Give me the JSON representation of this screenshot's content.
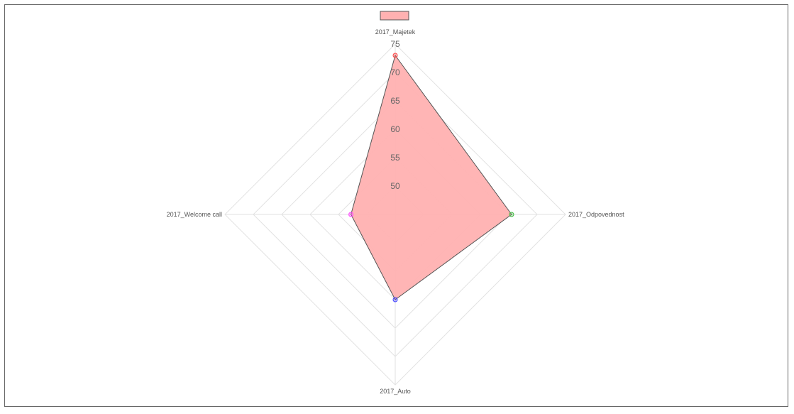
{
  "chart_data": {
    "type": "radar",
    "axes": [
      "2017_Majetek",
      "2017_Odpovednost",
      "2017_Auto",
      "2017_Welcome call"
    ],
    "series": [
      {
        "values": [
          73,
          65.5,
          60,
          52.8
        ],
        "fill_color": "#ffb1b1",
        "line_color": "#555555",
        "point_colors": [
          "#ff4444",
          "#44bb44",
          "#4444ff",
          "#ff44ff"
        ]
      }
    ],
    "r_min": 45,
    "r_max": 75,
    "ticks": [
      "50",
      "55",
      "60",
      "65",
      "70",
      "75"
    ],
    "tick_values": [
      50,
      55,
      60,
      65,
      70,
      75
    ],
    "legend_position": "top",
    "grid": true
  }
}
